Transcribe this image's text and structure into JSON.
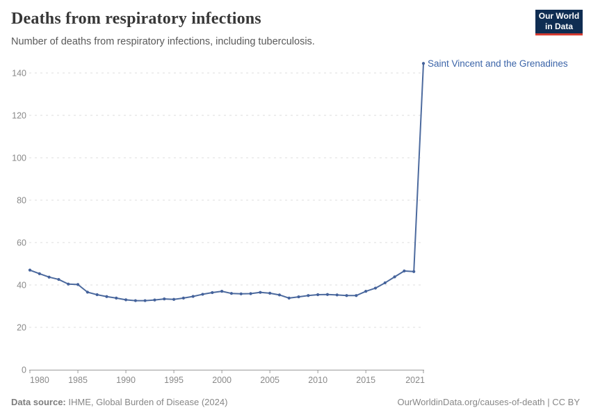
{
  "header": {
    "title": "Deaths from respiratory infections",
    "subtitle": "Number of deaths from respiratory infections, including tuberculosis.",
    "logo_line1": "Our World",
    "logo_line2": "in Data"
  },
  "chart_data": {
    "type": "line",
    "title": "Deaths from respiratory infections",
    "grid": "horizontal dashed",
    "legend_position": "end-of-line label",
    "ylim": [
      0,
      145
    ],
    "yticks": [
      0,
      20,
      40,
      60,
      80,
      100,
      120,
      140
    ],
    "xticks": [
      1980,
      1985,
      1990,
      1995,
      2000,
      2005,
      2010,
      2015,
      2021
    ],
    "x": [
      1980,
      1981,
      1982,
      1983,
      1984,
      1985,
      1986,
      1987,
      1988,
      1989,
      1990,
      1991,
      1992,
      1993,
      1994,
      1995,
      1996,
      1997,
      1998,
      1999,
      2000,
      2001,
      2002,
      2003,
      2004,
      2005,
      2006,
      2007,
      2008,
      2009,
      2010,
      2011,
      2012,
      2013,
      2014,
      2015,
      2016,
      2017,
      2018,
      2019,
      2020,
      2021
    ],
    "series": [
      {
        "name": "Saint Vincent and the Grenadines",
        "values": [
          47.0,
          45.3,
          43.7,
          42.6,
          40.4,
          40.2,
          36.6,
          35.4,
          34.5,
          33.8,
          33.0,
          32.6,
          32.6,
          32.9,
          33.4,
          33.2,
          33.8,
          34.6,
          35.6,
          36.4,
          37.0,
          36.0,
          35.8,
          35.9,
          36.5,
          36.1,
          35.3,
          33.8,
          34.4,
          35.0,
          35.4,
          35.5,
          35.3,
          35.0,
          35.0,
          37.0,
          38.5,
          41.0,
          43.8,
          46.6,
          46.3,
          144.5
        ]
      }
    ]
  },
  "footer": {
    "source_label": "Data source:",
    "source_text": " IHME, Global Burden of Disease (2024)",
    "credit": "OurWorldinData.org/causes-of-death | CC BY"
  },
  "colors": {
    "line": "#4c6a9e",
    "point": "#44629b",
    "entity_label": "#3b64a8",
    "logo_bg": "#0f2d52",
    "logo_accent": "#d43b31"
  }
}
